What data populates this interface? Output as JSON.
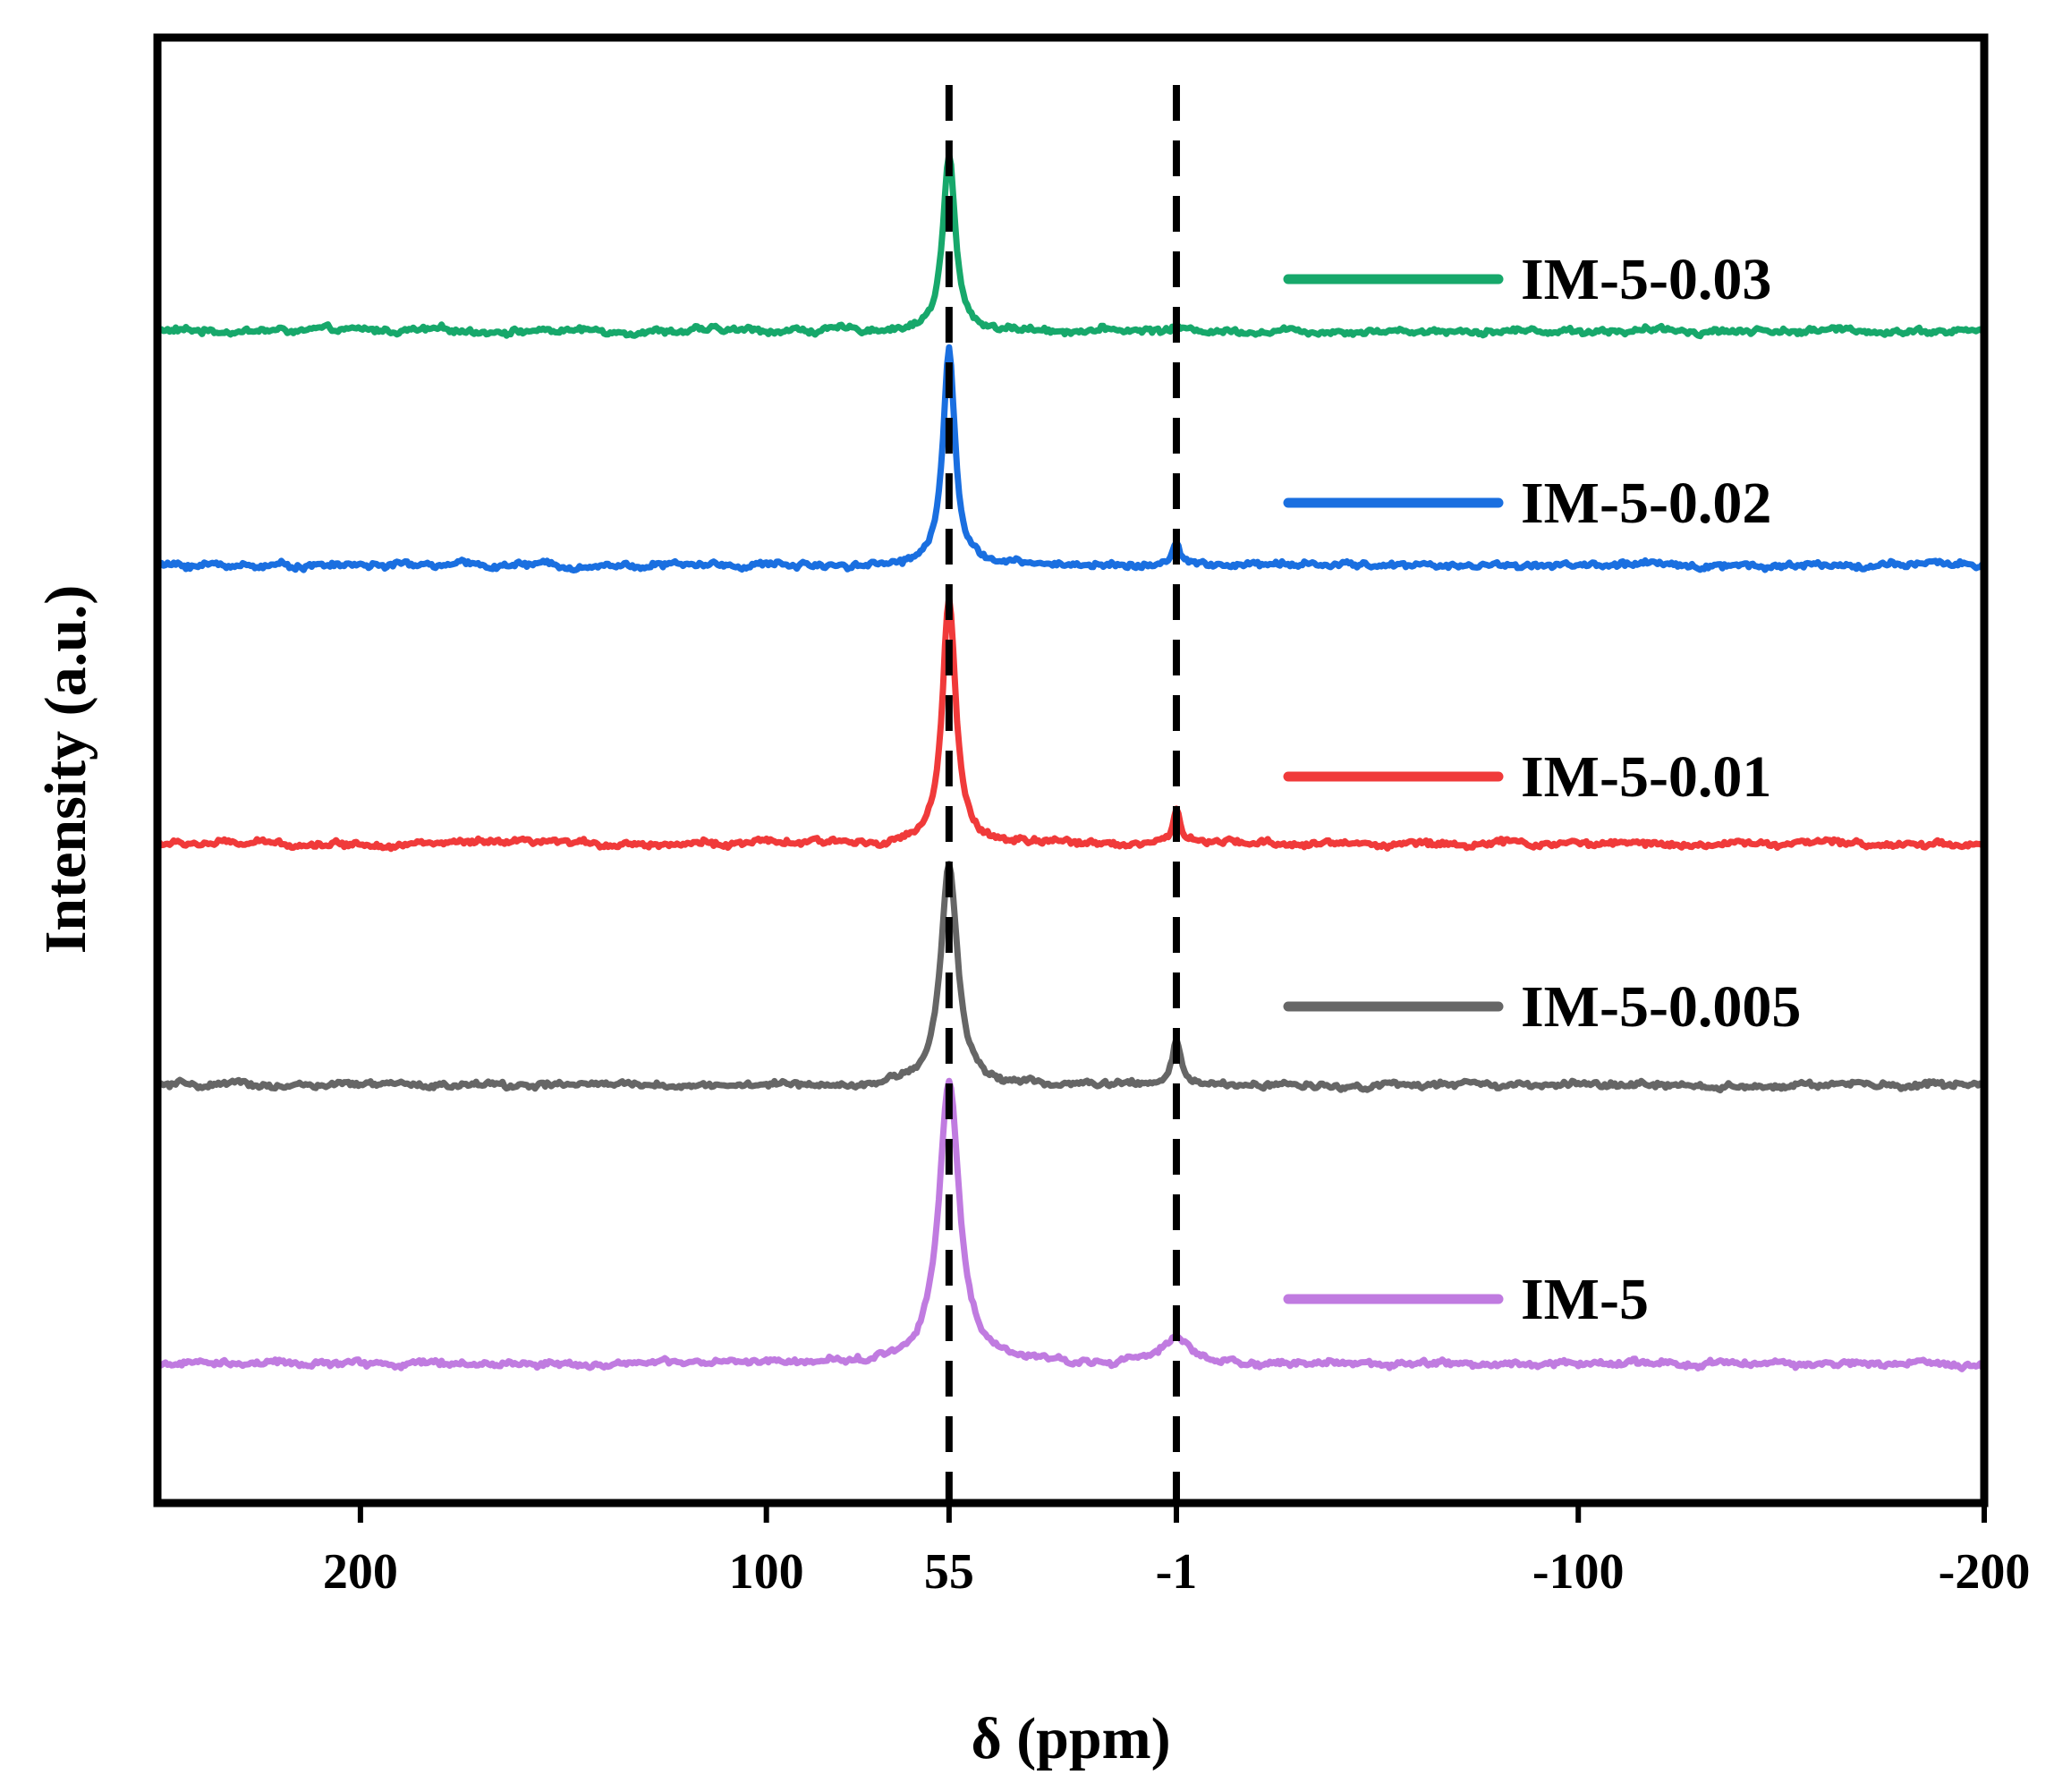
{
  "chart_data": {
    "type": "line",
    "title": "",
    "xlabel": "δ (ppm)",
    "ylabel": "Intensity (a.u.)",
    "xlim": [
      250,
      -200
    ],
    "ylim": [
      0,
      10
    ],
    "x_ticks": [
      200,
      100,
      55,
      -1,
      -100,
      -200
    ],
    "x_tick_labels": [
      "200",
      "100",
      "55",
      "-1",
      "-100",
      "-200"
    ],
    "reference_lines": [
      55,
      -1
    ],
    "legend_position": "right (stacked, one entry beside each trace)",
    "series": [
      {
        "name": "IM-5-0.03",
        "color": "#17A86B",
        "baseline": 8.0,
        "peaks": [
          {
            "position": 55,
            "height": 1.2,
            "width": 1.8
          },
          {
            "position": -1,
            "height": 0.03,
            "width": 1.0
          }
        ]
      },
      {
        "name": "IM-5-0.02",
        "color": "#1A6FE0",
        "baseline": 6.4,
        "peaks": [
          {
            "position": 55,
            "height": 1.5,
            "width": 1.8
          },
          {
            "position": -1,
            "height": 0.15,
            "width": 1.0
          }
        ]
      },
      {
        "name": "IM-5-0.01",
        "color": "#F03A3A",
        "baseline": 4.5,
        "peaks": [
          {
            "position": 55,
            "height": 1.65,
            "width": 2.0
          },
          {
            "position": -1,
            "height": 0.25,
            "width": 1.0
          }
        ]
      },
      {
        "name": "IM-5-0.005",
        "color": "#666666",
        "baseline": 2.85,
        "peaks": [
          {
            "position": 55,
            "height": 1.5,
            "width": 2.5
          },
          {
            "position": -1,
            "height": 0.3,
            "width": 1.2
          }
        ]
      },
      {
        "name": "IM-5",
        "color": "#C07BE0",
        "baseline": 0.95,
        "peaks": [
          {
            "position": 55,
            "height": 1.95,
            "width": 3.0
          },
          {
            "position": -1,
            "height": 0.2,
            "width": 3.5
          }
        ]
      }
    ]
  }
}
